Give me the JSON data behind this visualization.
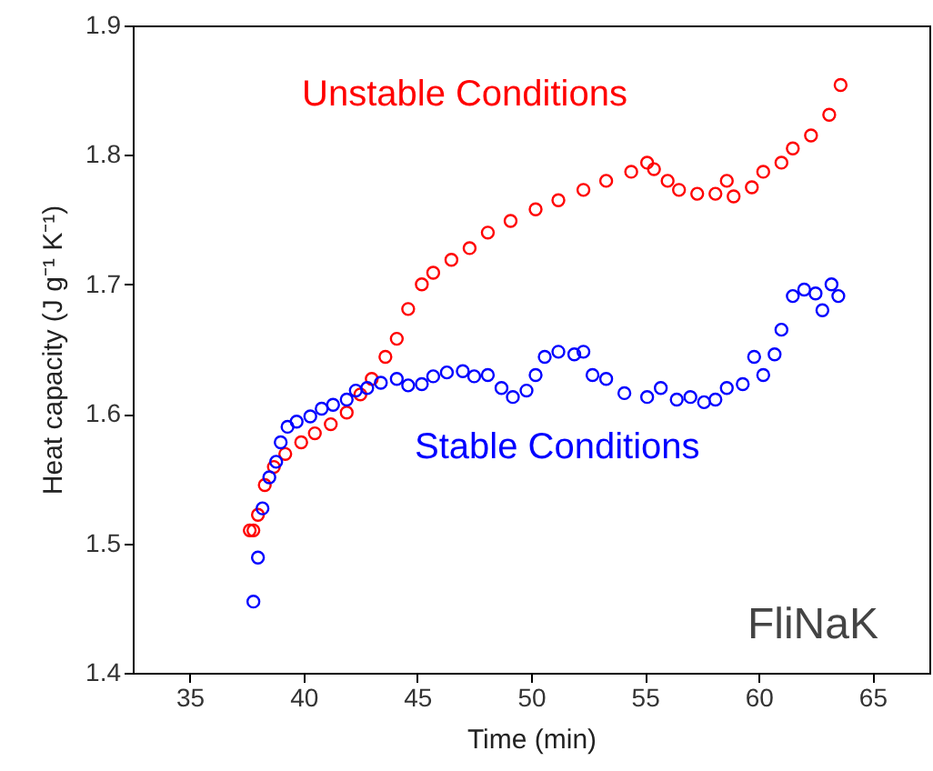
{
  "chart_data": {
    "type": "scatter",
    "xlabel": "Time (min)",
    "ylabel": "Heat capacity (J g⁻¹ K⁻¹)",
    "xlim": [
      32.5,
      67.5
    ],
    "xticks": [
      35,
      40,
      45,
      50,
      55,
      60,
      65
    ],
    "ylim": [
      1.4,
      1.9
    ],
    "yticks": [
      1.4,
      1.5,
      1.6,
      1.7,
      1.8,
      1.9
    ],
    "grid": false,
    "marker": "circle",
    "annotations": [
      "FliNaK"
    ],
    "series": [
      {
        "name": "Unstable Conditions",
        "color": "#ff0000",
        "x": [
          37.64,
          37.8,
          38.0,
          38.3,
          38.7,
          39.2,
          39.9,
          40.5,
          41.2,
          41.9,
          42.5,
          43.0,
          43.6,
          44.1,
          44.6,
          45.2,
          45.7,
          46.5,
          47.3,
          48.1,
          49.1,
          50.2,
          51.2,
          52.3,
          53.3,
          54.4,
          55.1,
          55.4,
          56.0,
          56.5,
          57.3,
          58.1,
          58.6,
          58.9,
          59.7,
          60.2,
          61.0,
          61.5,
          62.3,
          63.1,
          63.6
        ],
        "values": [
          1.51,
          1.51,
          1.522,
          1.545,
          1.559,
          1.569,
          1.578,
          1.585,
          1.592,
          1.601,
          1.615,
          1.627,
          1.644,
          1.658,
          1.681,
          1.7,
          1.709,
          1.719,
          1.728,
          1.74,
          1.749,
          1.758,
          1.765,
          1.773,
          1.78,
          1.787,
          1.794,
          1.789,
          1.78,
          1.773,
          1.77,
          1.77,
          1.78,
          1.768,
          1.775,
          1.787,
          1.794,
          1.805,
          1.815,
          1.831,
          1.854
        ]
      },
      {
        "name": "Stable Conditions",
        "color": "#0000ff",
        "x": [
          37.8,
          38.0,
          38.2,
          38.5,
          38.8,
          39.0,
          39.3,
          39.7,
          40.3,
          40.8,
          41.3,
          41.9,
          42.3,
          42.8,
          43.4,
          44.1,
          44.6,
          45.2,
          45.7,
          46.3,
          47.0,
          47.5,
          48.1,
          48.7,
          49.2,
          49.8,
          50.2,
          50.6,
          51.2,
          51.9,
          52.3,
          52.7,
          53.3,
          54.1,
          55.1,
          55.7,
          56.4,
          57.0,
          57.6,
          58.1,
          58.6,
          59.3,
          59.8,
          60.2,
          60.7,
          61.0,
          61.5,
          62.0,
          62.5,
          62.8,
          63.2,
          63.5
        ],
        "values": [
          1.455,
          1.489,
          1.527,
          1.551,
          1.563,
          1.578,
          1.59,
          1.594,
          1.598,
          1.604,
          1.607,
          1.611,
          1.618,
          1.62,
          1.624,
          1.627,
          1.622,
          1.623,
          1.629,
          1.632,
          1.633,
          1.629,
          1.63,
          1.62,
          1.613,
          1.618,
          1.63,
          1.644,
          1.648,
          1.646,
          1.648,
          1.63,
          1.627,
          1.616,
          1.613,
          1.62,
          1.611,
          1.613,
          1.609,
          1.611,
          1.62,
          1.623,
          1.644,
          1.63,
          1.646,
          1.665,
          1.691,
          1.696,
          1.693,
          1.68,
          1.7,
          1.691
        ]
      }
    ]
  }
}
